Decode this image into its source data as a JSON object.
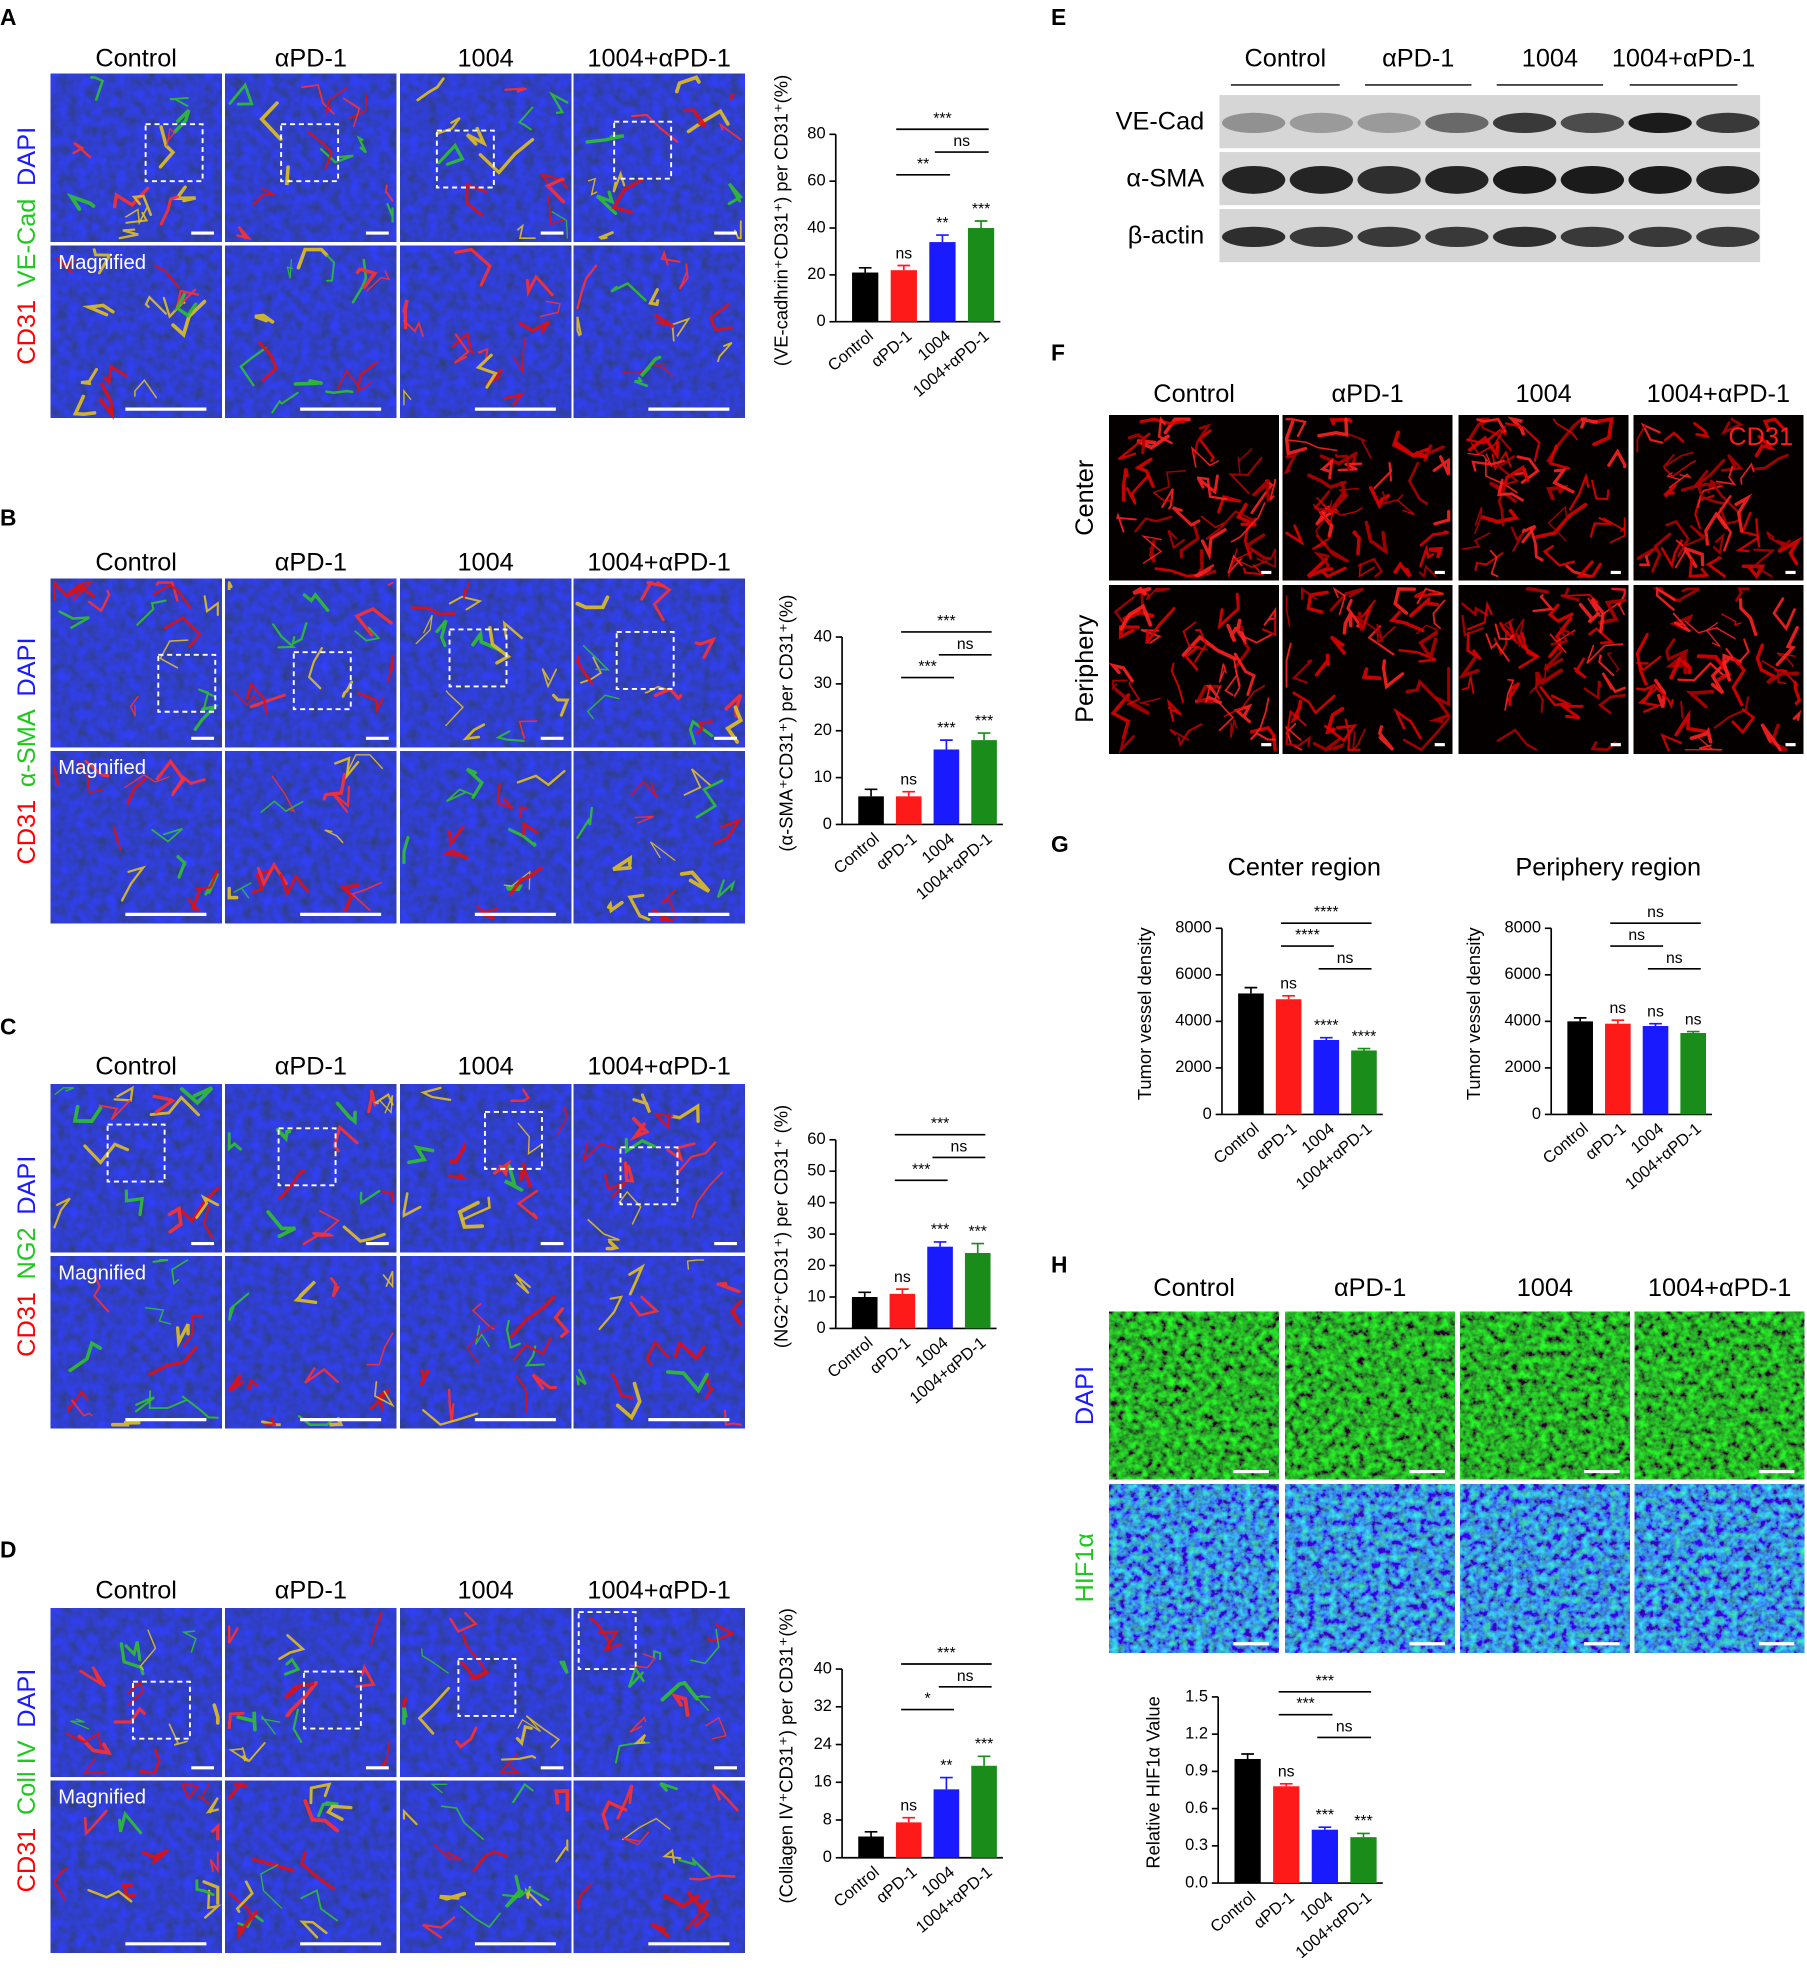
{
  "panels": [
    {
      "letter": "A",
      "column_headers": [
        "Control",
        "αPD-1",
        "1004",
        "1004+αPD-1"
      ],
      "row_labels": [
        "CD31",
        "VE-Cad",
        "DAPI"
      ],
      "magnified": "Magnified"
    },
    {
      "letter": "B",
      "column_headers": [
        "Control",
        "αPD-1",
        "1004",
        "1004+αPD-1"
      ],
      "row_labels": [
        "CD31",
        "α-SMA",
        "DAPI"
      ],
      "magnified": "Magnified"
    },
    {
      "letter": "C",
      "column_headers": [
        "Control",
        "αPD-1",
        "1004",
        "1004+αPD-1"
      ],
      "row_labels": [
        "CD31",
        "NG2",
        "DAPI"
      ],
      "magnified": "Magnified"
    },
    {
      "letter": "D",
      "column_headers": [
        "Control",
        "αPD-1",
        "1004",
        "1004+αPD-1"
      ],
      "row_labels": [
        "CD31",
        "Coll IV",
        "DAPI"
      ],
      "magnified": "Magnified"
    }
  ],
  "panel_e": {
    "letter": "E",
    "column_headers": [
      "Control",
      "αPD-1",
      "1004",
      "1004+αPD-1"
    ],
    "proteins": [
      "VE-Cad",
      "α-SMA",
      "β-actin"
    ]
  },
  "panel_f": {
    "letter": "F",
    "column_headers": [
      "Control",
      "αPD-1",
      "1004",
      "1004+αPD-1"
    ],
    "row_labels": [
      "Center",
      "Periphery"
    ],
    "stain": "CD31"
  },
  "panel_g": {
    "letter": "G"
  },
  "panel_h": {
    "letter": "H",
    "column_headers": [
      "Control",
      "αPD-1",
      "1004",
      "1004+αPD-1"
    ],
    "row_labels": [
      "DAPI",
      "HIF1α"
    ]
  },
  "chart_data": [
    {
      "type": "bar",
      "ylabel": "(VE-cadhrin⁺CD31⁺) per CD31⁺(%)",
      "categories": [
        "Control",
        "αPD-1",
        "1004",
        "1004+αPD-1"
      ],
      "values": [
        21,
        22,
        34,
        40
      ],
      "errors": [
        2,
        2,
        3,
        3
      ],
      "colors": [
        "#000000",
        "#ff1a1a",
        "#1a1aff",
        "#1a8c1a"
      ],
      "bar_labels": [
        null,
        "ns",
        "**",
        "***"
      ],
      "comparisons": [
        {
          "groups": [
            "αPD-1",
            "1004+αPD-1"
          ],
          "label": "***"
        },
        {
          "groups": [
            "1004",
            "1004+αPD-1"
          ],
          "label": "ns"
        },
        {
          "groups": [
            "αPD-1",
            "1004"
          ],
          "label": "**"
        }
      ],
      "ylim": [
        0,
        80
      ],
      "yticks": [
        0,
        20,
        40,
        60,
        80
      ]
    },
    {
      "type": "bar",
      "ylabel": "(α-SMA⁺CD31⁺) per CD31⁺(%)",
      "categories": [
        "Control",
        "αPD-1",
        "1004",
        "1004+αPD-1"
      ],
      "values": [
        6,
        6,
        16,
        18
      ],
      "errors": [
        1.5,
        1,
        2,
        1.5
      ],
      "colors": [
        "#000000",
        "#ff1a1a",
        "#1a1aff",
        "#1a8c1a"
      ],
      "bar_labels": [
        null,
        "ns",
        "***",
        "***"
      ],
      "comparisons": [
        {
          "groups": [
            "αPD-1",
            "1004+αPD-1"
          ],
          "label": "***"
        },
        {
          "groups": [
            "1004",
            "1004+αPD-1"
          ],
          "label": "ns"
        },
        {
          "groups": [
            "αPD-1",
            "1004"
          ],
          "label": "***"
        }
      ],
      "ylim": [
        0,
        40
      ],
      "yticks": [
        0,
        10,
        20,
        30,
        40
      ]
    },
    {
      "type": "bar",
      "ylabel": "(NG2⁺CD31⁺) per CD31⁺ (%)",
      "categories": [
        "Control",
        "αPD-1",
        "1004",
        "1004+αPD-1"
      ],
      "values": [
        10,
        11,
        26,
        24
      ],
      "errors": [
        1.5,
        1.5,
        1.5,
        3
      ],
      "colors": [
        "#000000",
        "#ff1a1a",
        "#1a1aff",
        "#1a8c1a"
      ],
      "bar_labels": [
        null,
        "ns",
        "***",
        "***"
      ],
      "comparisons": [
        {
          "groups": [
            "αPD-1",
            "1004+αPD-1"
          ],
          "label": "***"
        },
        {
          "groups": [
            "1004",
            "1004+αPD-1"
          ],
          "label": "ns"
        },
        {
          "groups": [
            "αPD-1",
            "1004"
          ],
          "label": "***"
        }
      ],
      "ylim": [
        0,
        60
      ],
      "yticks": [
        0,
        10,
        20,
        30,
        40,
        50,
        60
      ]
    },
    {
      "type": "bar",
      "ylabel": "(Collagen IV⁺CD31⁺) per CD31⁺(%)",
      "categories": [
        "Control",
        "αPD-1",
        "1004",
        "1004+αPD-1"
      ],
      "values": [
        4.5,
        7.5,
        14.5,
        19.5
      ],
      "errors": [
        1,
        1,
        2.5,
        2
      ],
      "colors": [
        "#000000",
        "#ff1a1a",
        "#1a1aff",
        "#1a8c1a"
      ],
      "bar_labels": [
        null,
        "ns",
        "**",
        "***"
      ],
      "comparisons": [
        {
          "groups": [
            "αPD-1",
            "1004+αPD-1"
          ],
          "label": "***"
        },
        {
          "groups": [
            "1004",
            "1004+αPD-1"
          ],
          "label": "ns"
        },
        {
          "groups": [
            "αPD-1",
            "1004"
          ],
          "label": "*"
        }
      ],
      "ylim": [
        0,
        40
      ],
      "yticks": [
        0,
        8,
        16,
        24,
        32,
        40
      ]
    },
    {
      "type": "bar",
      "title": "Center region",
      "ylabel": "Tumor vessel density",
      "categories": [
        "Control",
        "αPD-1",
        "1004",
        "1004+αPD-1"
      ],
      "values": [
        5200,
        4950,
        3200,
        2750
      ],
      "errors": [
        250,
        150,
        100,
        80
      ],
      "colors": [
        "#000000",
        "#ff1a1a",
        "#1a1aff",
        "#1a8c1a"
      ],
      "bar_labels": [
        null,
        "ns",
        "****",
        "****"
      ],
      "comparisons": [
        {
          "groups": [
            "αPD-1",
            "1004+αPD-1"
          ],
          "label": "****"
        },
        {
          "groups": [
            "αPD-1",
            "1004"
          ],
          "label": "****"
        },
        {
          "groups": [
            "1004",
            "1004+αPD-1"
          ],
          "label": "ns"
        }
      ],
      "ylim": [
        0,
        8000
      ],
      "yticks": [
        0,
        2000,
        4000,
        6000,
        8000
      ]
    },
    {
      "type": "bar",
      "title": "Periphery region",
      "ylabel": "Tumor vessel density",
      "categories": [
        "Control",
        "αPD-1",
        "1004",
        "1004+αPD-1"
      ],
      "values": [
        4000,
        3900,
        3800,
        3500
      ],
      "errors": [
        150,
        150,
        100,
        60
      ],
      "colors": [
        "#000000",
        "#ff1a1a",
        "#1a1aff",
        "#1a8c1a"
      ],
      "bar_labels": [
        null,
        "ns",
        "ns",
        "ns"
      ],
      "comparisons": [
        {
          "groups": [
            "αPD-1",
            "1004+αPD-1"
          ],
          "label": "ns"
        },
        {
          "groups": [
            "αPD-1",
            "1004"
          ],
          "label": "ns"
        },
        {
          "groups": [
            "1004",
            "1004+αPD-1"
          ],
          "label": "ns"
        }
      ],
      "ylim": [
        0,
        8000
      ],
      "yticks": [
        0,
        2000,
        4000,
        6000,
        8000
      ]
    },
    {
      "type": "bar",
      "ylabel": "Relative HIF1α Value",
      "categories": [
        "Control",
        "αPD-1",
        "1004",
        "1004+αPD-1"
      ],
      "values": [
        1.0,
        0.78,
        0.43,
        0.37
      ],
      "errors": [
        0.04,
        0.02,
        0.02,
        0.03
      ],
      "colors": [
        "#000000",
        "#ff1a1a",
        "#1a1aff",
        "#1a8c1a"
      ],
      "bar_labels": [
        null,
        "ns",
        "***",
        "***"
      ],
      "comparisons": [
        {
          "groups": [
            "αPD-1",
            "1004+αPD-1"
          ],
          "label": "***"
        },
        {
          "groups": [
            "αPD-1",
            "1004"
          ],
          "label": "***"
        },
        {
          "groups": [
            "1004",
            "1004+αPD-1"
          ],
          "label": "ns"
        }
      ],
      "ylim": [
        0,
        1.5
      ],
      "yticks": [
        {
          "value": 0,
          "label": "0.0"
        },
        0.3,
        0.6,
        0.9,
        1.2,
        1.5
      ]
    }
  ]
}
